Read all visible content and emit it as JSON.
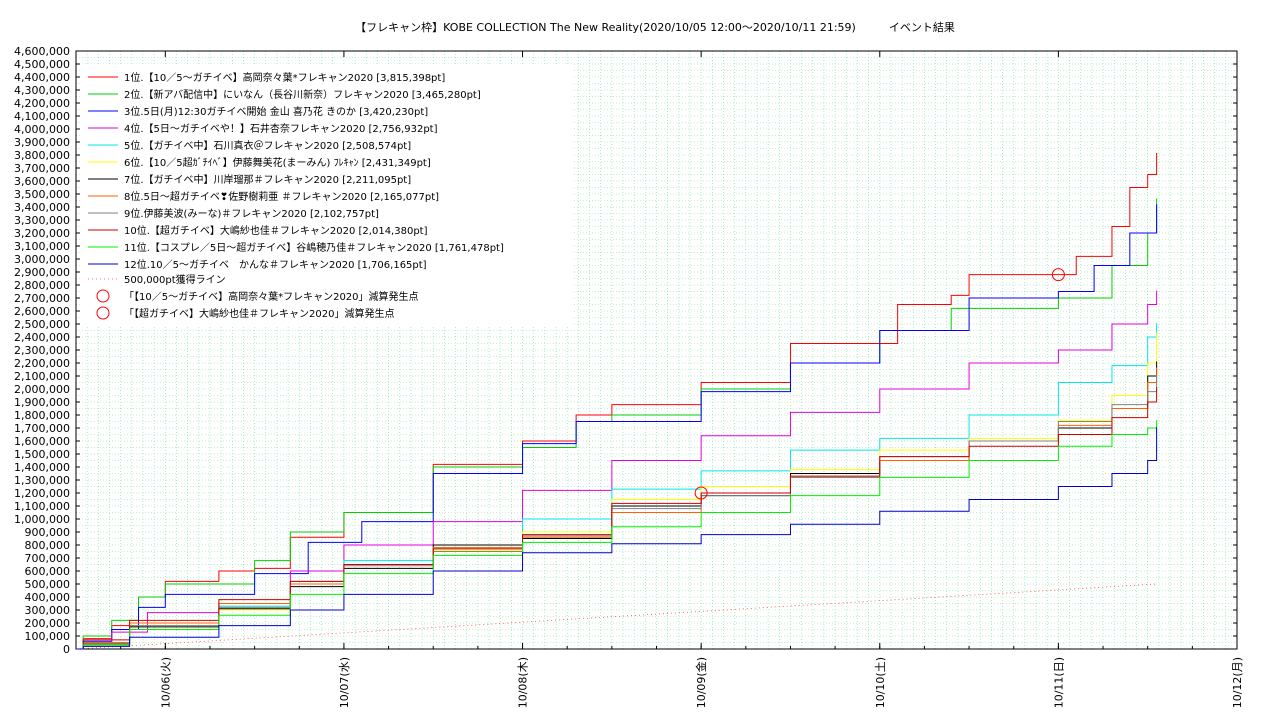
{
  "chart_data": {
    "type": "line",
    "title": "【フレキャン枠】KOBE COLLECTION The New Reality(2020/10/05 12:00〜2020/10/11 21:59)　　　イベント結果",
    "xlabel": "",
    "ylabel": "",
    "x_ticks": [
      "10/06(火)",
      "10/07(水)",
      "10/08(木)",
      "10/09(金)",
      "10/10(土)",
      "10/11(日)",
      "10/12(月)"
    ],
    "x_range_days": [
      0,
      6.5
    ],
    "ylim": [
      0,
      4600000
    ],
    "y_ticks": [
      0,
      100000,
      200000,
      300000,
      400000,
      500000,
      600000,
      700000,
      800000,
      900000,
      1000000,
      1100000,
      1200000,
      1300000,
      1400000,
      1500000,
      1600000,
      1700000,
      1800000,
      1900000,
      2000000,
      2100000,
      2200000,
      2300000,
      2400000,
      2500000,
      2600000,
      2700000,
      2800000,
      2900000,
      3000000,
      3100000,
      3200000,
      3300000,
      3400000,
      3500000,
      3600000,
      3700000,
      3800000,
      3900000,
      4000000,
      4100000,
      4200000,
      4300000,
      4400000,
      4500000,
      4600000
    ],
    "y_tick_labels": [
      "0",
      "100,000",
      "200,000",
      "300,000",
      "400,000",
      "500,000",
      "600,000",
      "700,000",
      "800,000",
      "900,000",
      "1,000,000",
      "1,100,000",
      "1,200,000",
      "1,300,000",
      "1,400,000",
      "1,500,000",
      "1,600,000",
      "1,700,000",
      "1,800,000",
      "1,900,000",
      "2,000,000",
      "2,100,000",
      "2,200,000",
      "2,300,000",
      "2,400,000",
      "2,500,000",
      "2,600,000",
      "2,700,000",
      "2,800,000",
      "2,900,000",
      "3,000,000",
      "3,100,000",
      "3,200,000",
      "3,300,000",
      "3,400,000",
      "3,500,000",
      "3,600,000",
      "3,700,000",
      "3,800,000",
      "3,900,000",
      "4,000,000",
      "4,100,000",
      "4,200,000",
      "4,300,000",
      "4,400,000",
      "4,500,000",
      "4,600,000"
    ],
    "grid": true,
    "legend_position": "top-left",
    "series": [
      {
        "name": "1位.【10／5〜ガチイベ】高岡奈々葉*フレキャン2020 [3,815,398pt]",
        "color": "#ff0000",
        "points": [
          [
            0,
            0
          ],
          [
            0.04,
            80000
          ],
          [
            0.2,
            180000
          ],
          [
            0.35,
            400000
          ],
          [
            0.5,
            520000
          ],
          [
            0.8,
            600000
          ],
          [
            1.0,
            620000
          ],
          [
            1.2,
            860000
          ],
          [
            1.5,
            1050000
          ],
          [
            2.0,
            1420000
          ],
          [
            2.5,
            1600000
          ],
          [
            2.8,
            1800000
          ],
          [
            3.0,
            1880000
          ],
          [
            3.5,
            2050000
          ],
          [
            4.0,
            2350000
          ],
          [
            4.6,
            2650000
          ],
          [
            4.9,
            2720000
          ],
          [
            5.0,
            2880000
          ],
          [
            5.5,
            2880000
          ],
          [
            5.6,
            3020000
          ],
          [
            5.8,
            3250000
          ],
          [
            5.9,
            3550000
          ],
          [
            6.0,
            3650000
          ],
          [
            6.05,
            3815398
          ]
        ]
      },
      {
        "name": "2位.【新アバ配信中】にいなん（長谷川新奈）フレキャン2020 [3,465,280pt]",
        "color": "#00d000",
        "points": [
          [
            0,
            0
          ],
          [
            0.04,
            100000
          ],
          [
            0.2,
            220000
          ],
          [
            0.35,
            400000
          ],
          [
            0.5,
            500000
          ],
          [
            1.0,
            680000
          ],
          [
            1.2,
            900000
          ],
          [
            1.5,
            1050000
          ],
          [
            2.0,
            1400000
          ],
          [
            2.5,
            1550000
          ],
          [
            2.8,
            1750000
          ],
          [
            3.0,
            1800000
          ],
          [
            3.5,
            2000000
          ],
          [
            4.0,
            2200000
          ],
          [
            4.5,
            2450000
          ],
          [
            4.9,
            2620000
          ],
          [
            5.3,
            2620000
          ],
          [
            5.5,
            2700000
          ],
          [
            5.8,
            2950000
          ],
          [
            6.0,
            3200000
          ],
          [
            6.05,
            3465280
          ]
        ]
      },
      {
        "name": "3位.5日(月)12:30ガチイベ開始 金山 喜乃花 きのか [3,420,230pt]",
        "color": "#0000ff",
        "points": [
          [
            0,
            0
          ],
          [
            0.04,
            60000
          ],
          [
            0.2,
            150000
          ],
          [
            0.35,
            320000
          ],
          [
            0.5,
            420000
          ],
          [
            1.0,
            580000
          ],
          [
            1.3,
            820000
          ],
          [
            1.6,
            980000
          ],
          [
            2.0,
            1350000
          ],
          [
            2.5,
            1580000
          ],
          [
            2.8,
            1750000
          ],
          [
            3.0,
            1750000
          ],
          [
            3.5,
            1980000
          ],
          [
            4.0,
            2200000
          ],
          [
            4.5,
            2450000
          ],
          [
            5.0,
            2700000
          ],
          [
            5.5,
            2750000
          ],
          [
            5.7,
            2950000
          ],
          [
            5.9,
            3200000
          ],
          [
            6.05,
            3420230
          ]
        ]
      },
      {
        "name": "4位.【5日〜ガチイベや！】石井杏奈フレキャン2020 [2,756,932pt]",
        "color": "#e000e0",
        "points": [
          [
            0,
            0
          ],
          [
            0.04,
            50000
          ],
          [
            0.2,
            130000
          ],
          [
            0.4,
            280000
          ],
          [
            0.8,
            350000
          ],
          [
            1.2,
            600000
          ],
          [
            1.5,
            800000
          ],
          [
            2.0,
            980000
          ],
          [
            2.5,
            1220000
          ],
          [
            3.0,
            1450000
          ],
          [
            3.5,
            1640000
          ],
          [
            4.0,
            1820000
          ],
          [
            4.5,
            2000000
          ],
          [
            5.0,
            2200000
          ],
          [
            5.5,
            2300000
          ],
          [
            5.8,
            2500000
          ],
          [
            6.0,
            2650000
          ],
          [
            6.05,
            2756932
          ]
        ]
      },
      {
        "name": "5位.【ガチイベ中】石川真衣＠フレキャン2020 [2,508,574pt]",
        "color": "#00e8e8",
        "points": [
          [
            0,
            0
          ],
          [
            0.04,
            40000
          ],
          [
            0.3,
            200000
          ],
          [
            0.8,
            330000
          ],
          [
            1.2,
            520000
          ],
          [
            1.5,
            680000
          ],
          [
            2.0,
            780000
          ],
          [
            2.5,
            1000000
          ],
          [
            3.0,
            1230000
          ],
          [
            3.5,
            1370000
          ],
          [
            4.0,
            1530000
          ],
          [
            4.5,
            1620000
          ],
          [
            5.0,
            1800000
          ],
          [
            5.5,
            2050000
          ],
          [
            5.8,
            2180000
          ],
          [
            6.0,
            2400000
          ],
          [
            6.05,
            2508574
          ]
        ]
      },
      {
        "name": "6位.【10／5超ｶﾞﾁｲﾍﾞ】伊藤舞美花(まーみん) ﾌﾚｷｬﾝ [2,431,349pt]",
        "color": "#ffff00",
        "points": [
          [
            0,
            0
          ],
          [
            0.04,
            30000
          ],
          [
            0.3,
            180000
          ],
          [
            0.8,
            300000
          ],
          [
            1.2,
            500000
          ],
          [
            1.5,
            650000
          ],
          [
            2.0,
            760000
          ],
          [
            2.5,
            900000
          ],
          [
            3.0,
            1150000
          ],
          [
            3.5,
            1250000
          ],
          [
            4.0,
            1380000
          ],
          [
            4.5,
            1530000
          ],
          [
            5.0,
            1620000
          ],
          [
            5.5,
            1760000
          ],
          [
            5.8,
            1950000
          ],
          [
            6.0,
            2200000
          ],
          [
            6.05,
            2431349
          ]
        ]
      },
      {
        "name": "7位.【ガチイベ中】川岸瑠那＃フレキャン2020 [2,211,095pt]",
        "color": "#000000",
        "points": [
          [
            0,
            0
          ],
          [
            0.04,
            40000
          ],
          [
            0.3,
            170000
          ],
          [
            0.8,
            310000
          ],
          [
            1.2,
            480000
          ],
          [
            1.5,
            620000
          ],
          [
            2.0,
            800000
          ],
          [
            2.5,
            850000
          ],
          [
            3.0,
            1100000
          ],
          [
            3.5,
            1180000
          ],
          [
            4.0,
            1350000
          ],
          [
            4.5,
            1450000
          ],
          [
            5.0,
            1600000
          ],
          [
            5.5,
            1700000
          ],
          [
            5.8,
            1850000
          ],
          [
            6.0,
            2100000
          ],
          [
            6.05,
            2211095
          ]
        ]
      },
      {
        "name": "8位.5日〜超ガチイベ❣佐野樹莉亜 ＃フレキャン2020 [2,165,077pt]",
        "color": "#ff6000",
        "points": [
          [
            0,
            0
          ],
          [
            0.04,
            50000
          ],
          [
            0.3,
            200000
          ],
          [
            0.8,
            350000
          ],
          [
            1.2,
            500000
          ],
          [
            1.5,
            650000
          ],
          [
            2.0,
            780000
          ],
          [
            2.5,
            860000
          ],
          [
            3.0,
            1050000
          ],
          [
            3.5,
            1200000
          ],
          [
            4.0,
            1320000
          ],
          [
            4.5,
            1450000
          ],
          [
            5.0,
            1600000
          ],
          [
            5.5,
            1720000
          ],
          [
            5.8,
            1850000
          ],
          [
            6.0,
            2050000
          ],
          [
            6.05,
            2165077
          ]
        ]
      },
      {
        "name": "9位.伊藤美波(みーな)＃フレキャン2020 [2,102,757pt]",
        "color": "#808080",
        "points": [
          [
            0,
            0
          ],
          [
            0.04,
            40000
          ],
          [
            0.3,
            180000
          ],
          [
            0.8,
            320000
          ],
          [
            1.2,
            520000
          ],
          [
            1.5,
            640000
          ],
          [
            2.0,
            750000
          ],
          [
            2.5,
            870000
          ],
          [
            3.0,
            1080000
          ],
          [
            3.5,
            1180000
          ],
          [
            4.0,
            1320000
          ],
          [
            4.5,
            1480000
          ],
          [
            5.0,
            1600000
          ],
          [
            5.5,
            1750000
          ],
          [
            5.8,
            1880000
          ],
          [
            6.0,
            1980000
          ],
          [
            6.05,
            2102757
          ]
        ]
      },
      {
        "name": "10位.【超ガチイベ】大嶋紗也佳＃フレキャン2020 [2,014,380pt]",
        "color": "#cc0000",
        "points": [
          [
            0,
            0
          ],
          [
            0.04,
            70000
          ],
          [
            0.3,
            220000
          ],
          [
            0.8,
            380000
          ],
          [
            1.2,
            520000
          ],
          [
            1.5,
            650000
          ],
          [
            2.0,
            770000
          ],
          [
            2.5,
            880000
          ],
          [
            3.0,
            1120000
          ],
          [
            3.5,
            1200000
          ],
          [
            4.0,
            1330000
          ],
          [
            4.5,
            1480000
          ],
          [
            5.0,
            1560000
          ],
          [
            5.5,
            1650000
          ],
          [
            5.8,
            1780000
          ],
          [
            6.0,
            1900000
          ],
          [
            6.05,
            2014380
          ]
        ]
      },
      {
        "name": "11位.【コスプレ／5日〜超ガチイベ】谷嶋穂乃佳＃フレキャン2020 [1,761,478pt]",
        "color": "#00f000",
        "points": [
          [
            0,
            0
          ],
          [
            0.04,
            30000
          ],
          [
            0.3,
            150000
          ],
          [
            0.8,
            260000
          ],
          [
            1.2,
            420000
          ],
          [
            1.5,
            580000
          ],
          [
            2.0,
            720000
          ],
          [
            2.5,
            820000
          ],
          [
            3.0,
            940000
          ],
          [
            3.5,
            1050000
          ],
          [
            4.0,
            1180000
          ],
          [
            4.5,
            1320000
          ],
          [
            5.0,
            1450000
          ],
          [
            5.5,
            1560000
          ],
          [
            5.8,
            1650000
          ],
          [
            6.0,
            1700000
          ],
          [
            6.05,
            1761478
          ]
        ]
      },
      {
        "name": "12位.10／5〜ガチイベ　かんな＃フレキャン2020 [1,706,165pt]",
        "color": "#0000cc",
        "points": [
          [
            0,
            0
          ],
          [
            0.04,
            20000
          ],
          [
            0.3,
            90000
          ],
          [
            0.8,
            180000
          ],
          [
            1.2,
            300000
          ],
          [
            1.5,
            420000
          ],
          [
            2.0,
            600000
          ],
          [
            2.5,
            740000
          ],
          [
            3.0,
            810000
          ],
          [
            3.5,
            880000
          ],
          [
            4.0,
            960000
          ],
          [
            4.5,
            1060000
          ],
          [
            5.0,
            1150000
          ],
          [
            5.5,
            1250000
          ],
          [
            5.8,
            1350000
          ],
          [
            6.0,
            1450000
          ],
          [
            6.05,
            1706165
          ]
        ]
      }
    ],
    "target_line": {
      "name": "500,000pt獲得ライン",
      "color": "#ff4040",
      "from": [
        0,
        0
      ],
      "to": [
        6.05,
        500000
      ]
    },
    "markers": [
      {
        "name": "「【10／5〜ガチイベ】高岡奈々葉*フレキャン2020」減算発生点",
        "color": "#ff0000",
        "x": 5.5,
        "y": 2880000
      },
      {
        "name": "「【超ガチイベ】大嶋紗也佳＃フレキャン2020」減算発生点",
        "color": "#ff0000",
        "x": 3.5,
        "y": 1200000
      }
    ]
  }
}
